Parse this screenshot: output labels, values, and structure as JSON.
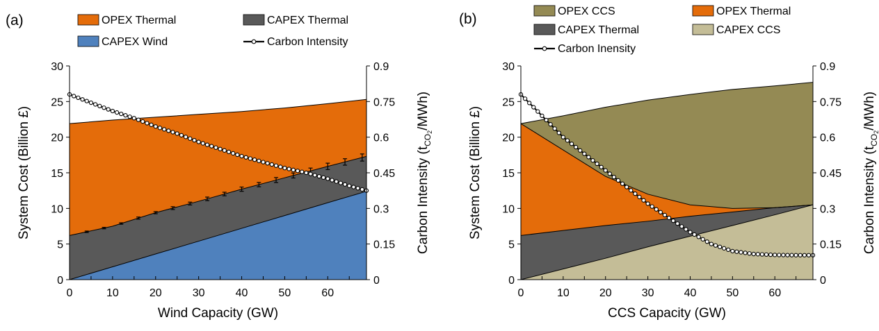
{
  "chart_data": [
    {
      "panel_label": "(a)",
      "type": "area",
      "xlabel": "Wind Capacity (GW)",
      "ylabel": "System Cost (Billion £)",
      "y2label_prefix": "Carbon Intensity (t",
      "y2label_sub": "CO",
      "y2label_sub2": "2",
      "y2label_suffix": "/MWh)",
      "xlim": [
        0,
        69
      ],
      "ylim": [
        0,
        30
      ],
      "y2lim": [
        0,
        0.9
      ],
      "xticks": [
        "0",
        "10",
        "20",
        "30",
        "40",
        "50",
        "60"
      ],
      "yticks": [
        "0",
        "5",
        "10",
        "15",
        "20",
        "25",
        "30"
      ],
      "y2ticks": [
        "0",
        "0.15",
        "0.3",
        "0.45",
        "0.6",
        "0.75",
        "0.9"
      ],
      "legend": [
        {
          "label": "OPEX Thermal",
          "kind": "box",
          "color": "#E46C0A"
        },
        {
          "label": "CAPEX Thermal",
          "kind": "box",
          "color": "#595959"
        },
        {
          "label": "CAPEX Wind",
          "kind": "box",
          "color": "#4F81BD"
        },
        {
          "label": "Carbon Intensity",
          "kind": "line",
          "color": "#000000"
        }
      ],
      "x": [
        0,
        10,
        20,
        30,
        40,
        50,
        60,
        69
      ],
      "series": [
        {
          "name": "CAPEX Wind",
          "color": "#4F81BD",
          "values": [
            0,
            1.8,
            3.6,
            5.4,
            7.2,
            9.0,
            10.8,
            12.4
          ]
        },
        {
          "name": "CAPEX Thermal",
          "color": "#595959",
          "values": [
            6.2,
            7.5,
            9.4,
            11.0,
            12.7,
            14.3,
            15.9,
            17.3
          ]
        },
        {
          "name": "OPEX Thermal",
          "color": "#E46C0A",
          "values": [
            21.9,
            22.4,
            22.8,
            23.2,
            23.6,
            24.1,
            24.7,
            25.3
          ]
        }
      ],
      "carbon_intensity": {
        "name": "Carbon Intensity",
        "x": [
          0,
          5,
          10,
          15,
          20,
          25,
          30,
          35,
          40,
          45,
          50,
          55,
          60,
          65,
          69
        ],
        "values": [
          0.78,
          0.745,
          0.71,
          0.68,
          0.645,
          0.615,
          0.58,
          0.55,
          0.52,
          0.495,
          0.47,
          0.45,
          0.425,
          0.395,
          0.375
        ]
      },
      "error_bars": {
        "x": [
          4,
          8,
          12,
          16,
          20,
          24,
          28,
          32,
          36,
          40,
          44,
          48,
          52,
          56,
          60,
          64,
          68
        ],
        "half_width": [
          0.1,
          0.1,
          0.1,
          0.15,
          0.15,
          0.2,
          0.2,
          0.25,
          0.25,
          0.3,
          0.3,
          0.35,
          0.35,
          0.4,
          0.45,
          0.45,
          0.5
        ]
      }
    },
    {
      "panel_label": "(b)",
      "type": "area",
      "xlabel": "CCS Capacity (GW)",
      "ylabel": "System Cost (Billion £)",
      "y2label_prefix": "Carbon Intensity (t",
      "y2label_sub": "CO",
      "y2label_sub2": "2",
      "y2label_suffix": "/MWh)",
      "xlim": [
        0,
        69
      ],
      "ylim": [
        0,
        30
      ],
      "y2lim": [
        0,
        0.9
      ],
      "xticks": [
        "0",
        "10",
        "20",
        "30",
        "40",
        "50",
        "60"
      ],
      "yticks": [
        "0",
        "5",
        "10",
        "15",
        "20",
        "25",
        "30"
      ],
      "y2ticks": [
        "0",
        "0.15",
        "0.3",
        "0.45",
        "0.6",
        "0.75",
        "0.9"
      ],
      "legend": [
        {
          "label": "OPEX CCS",
          "kind": "box",
          "color": "#948A54"
        },
        {
          "label": "OPEX Thermal",
          "kind": "box",
          "color": "#E46C0A"
        },
        {
          "label": "CAPEX Thermal",
          "kind": "box",
          "color": "#595959"
        },
        {
          "label": "CAPEX CCS",
          "kind": "box",
          "color": "#C4BD97"
        },
        {
          "label": "Carbon Inensity",
          "kind": "line",
          "color": "#000000"
        }
      ],
      "x": [
        0,
        10,
        20,
        30,
        40,
        50,
        60,
        69
      ],
      "series": [
        {
          "name": "CAPEX CCS",
          "color": "#C4BD97",
          "values": [
            0,
            1.5,
            3.0,
            4.6,
            6.1,
            7.6,
            9.1,
            10.5
          ]
        },
        {
          "name": "CAPEX Thermal",
          "color": "#595959",
          "values": [
            6.2,
            6.9,
            7.6,
            8.2,
            8.9,
            9.5,
            10.1,
            10.5
          ]
        },
        {
          "name": "OPEX Thermal",
          "color": "#E46C0A",
          "values": [
            21.9,
            18.2,
            14.5,
            12.0,
            10.5,
            10.0,
            10.1,
            10.5
          ]
        },
        {
          "name": "OPEX CCS",
          "color": "#948A54",
          "values": [
            21.9,
            23.0,
            24.2,
            25.2,
            26.0,
            26.7,
            27.2,
            27.7
          ]
        }
      ],
      "carbon_intensity": {
        "name": "Carbon Inensity",
        "x": [
          0,
          5,
          10,
          15,
          20,
          25,
          30,
          35,
          40,
          45,
          50,
          55,
          60,
          65,
          69
        ],
        "values": [
          0.78,
          0.69,
          0.6,
          0.53,
          0.46,
          0.39,
          0.32,
          0.26,
          0.2,
          0.15,
          0.12,
          0.108,
          0.104,
          0.103,
          0.103
        ]
      }
    }
  ]
}
